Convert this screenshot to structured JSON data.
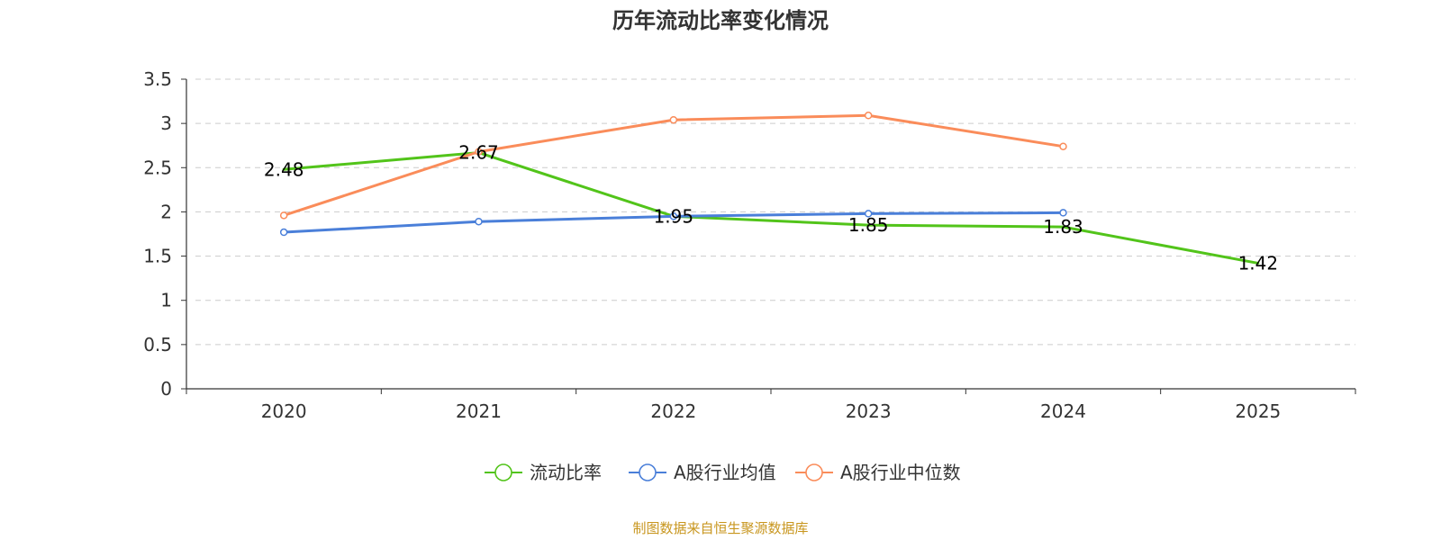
{
  "chart_data": {
    "type": "line",
    "title": "历年流动比率变化情况",
    "categories": [
      "2020",
      "2021",
      "2022",
      "2023",
      "2024",
      "2025"
    ],
    "ylim": [
      0,
      3.5
    ],
    "yticks": [
      "0",
      "0.5",
      "1",
      "1.5",
      "2",
      "2.5",
      "3",
      "3.5"
    ],
    "grid": true,
    "legend_position": "bottom",
    "series": [
      {
        "name": "流动比率",
        "color": "#52c41a",
        "values": [
          2.48,
          2.67,
          1.95,
          1.85,
          1.83,
          1.42
        ],
        "labels": [
          "2.48",
          "2.67",
          "1.95",
          "1.85",
          "1.83",
          "1.42"
        ],
        "show_labels": true,
        "show_markers": false
      },
      {
        "name": "A股行业均值",
        "color": "#4a7fd9",
        "values": [
          1.77,
          1.89,
          1.95,
          1.98,
          1.99,
          null
        ],
        "show_labels": false,
        "show_markers": true
      },
      {
        "name": "A股行业中位数",
        "color": "#fa8c5a",
        "values": [
          1.96,
          2.68,
          3.04,
          3.09,
          2.74,
          null
        ],
        "show_labels": false,
        "show_markers": true
      }
    ],
    "source": "制图数据来自恒生聚源数据库"
  }
}
